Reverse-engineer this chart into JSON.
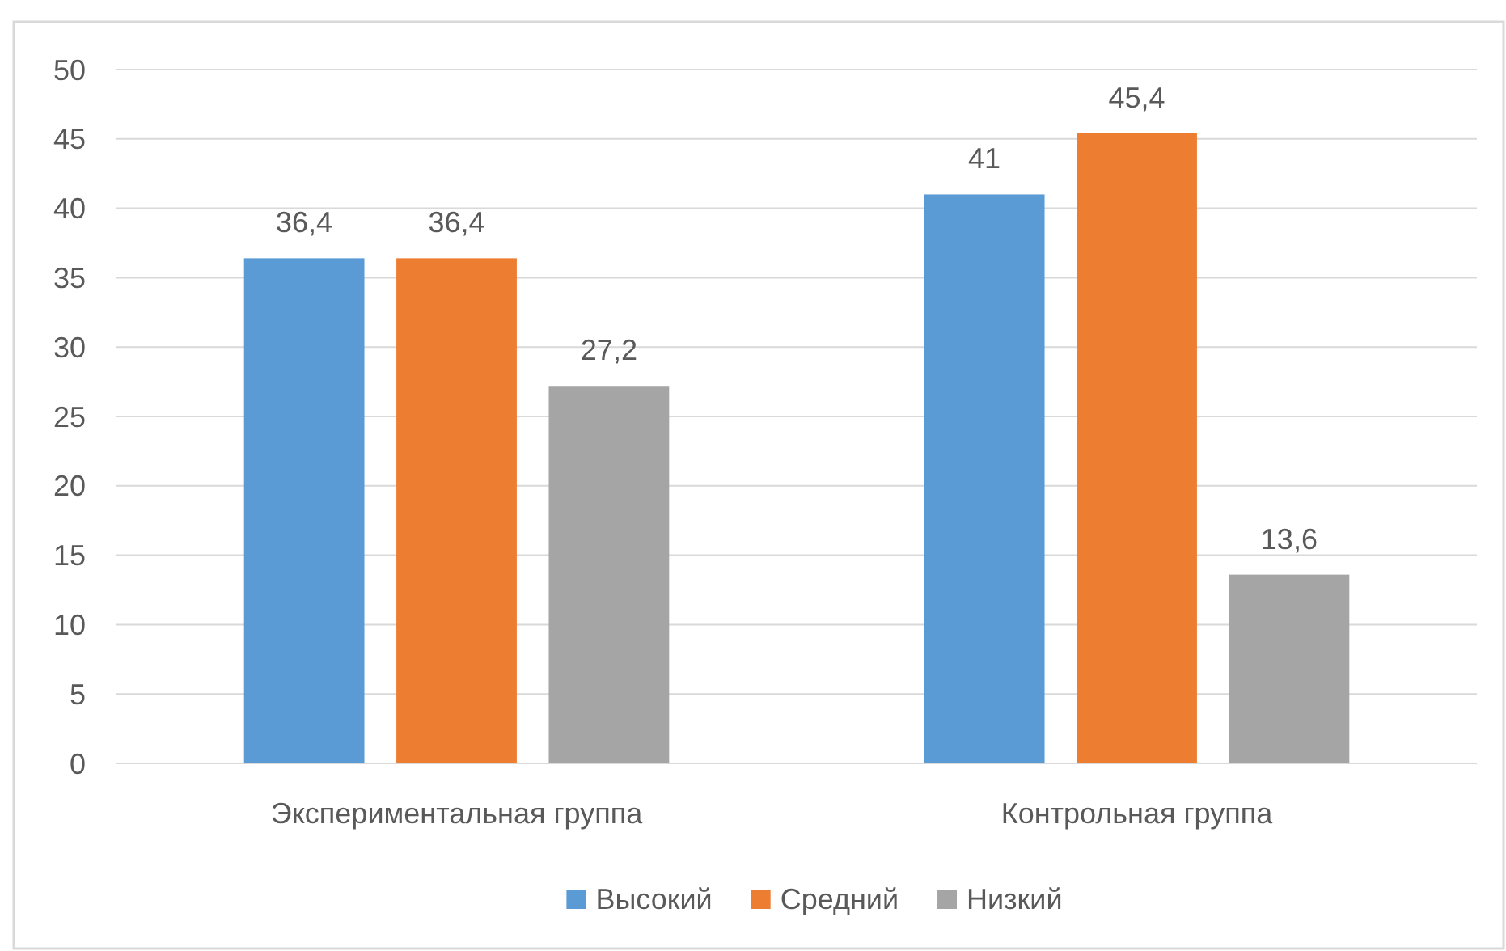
{
  "chart_data": {
    "type": "bar",
    "categories": [
      "Экспериментальная группа",
      "Контрольная группа"
    ],
    "series": [
      {
        "name": "Высокий",
        "color": "#5b9bd5",
        "values": [
          36.4,
          41
        ],
        "value_labels": [
          "36,4",
          "41"
        ]
      },
      {
        "name": "Средний",
        "color": "#ed7d31",
        "values": [
          36.4,
          45.4
        ],
        "value_labels": [
          "36,4",
          "45,4"
        ]
      },
      {
        "name": "Низкий",
        "color": "#a5a5a5",
        "values": [
          27.2,
          13.6
        ],
        "value_labels": [
          "27,2",
          "13,6"
        ]
      }
    ],
    "ylim": [
      0,
      50
    ],
    "yticks": [
      0,
      5,
      10,
      15,
      20,
      25,
      30,
      35,
      40,
      45,
      50
    ],
    "grid": "y",
    "legend": "bottom"
  }
}
